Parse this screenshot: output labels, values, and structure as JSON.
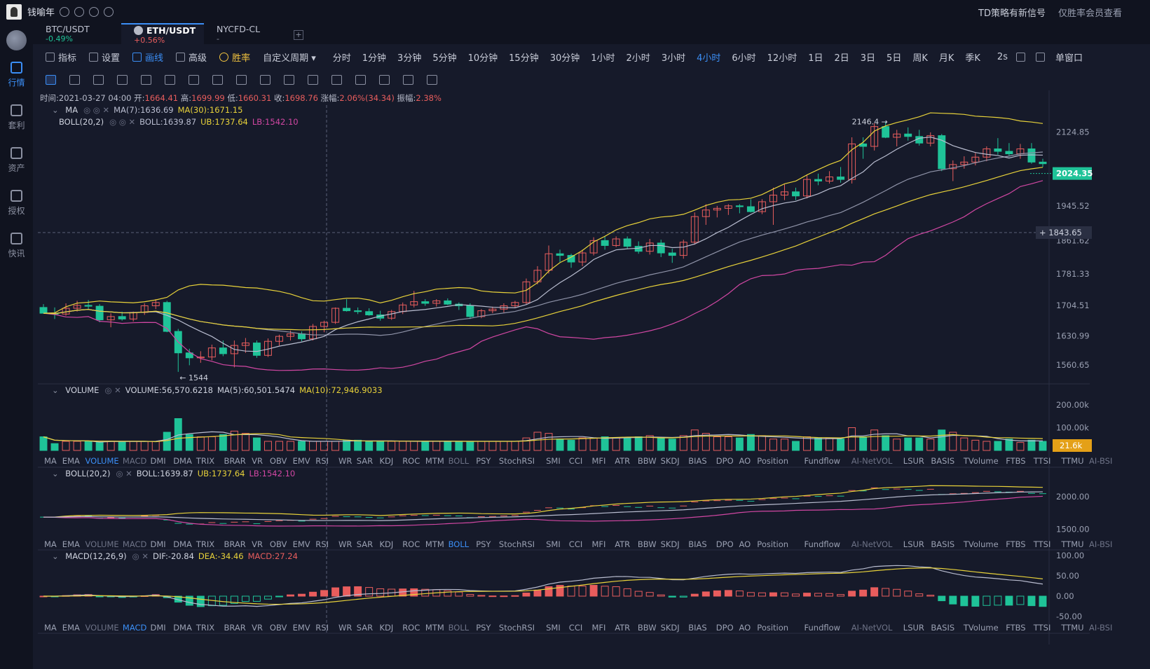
{
  "topbar": {
    "user_name": "钱喻年",
    "notice": "TD策略有新信号",
    "member_tip": "仅胜率会员查看"
  },
  "sidebar": [
    {
      "label": "行情",
      "icon": "market-icon",
      "active": true
    },
    {
      "label": "套利",
      "icon": "arbitrage-icon"
    },
    {
      "label": "资产",
      "icon": "wallet-icon"
    },
    {
      "label": "授权",
      "icon": "key-icon"
    },
    {
      "label": "快讯",
      "icon": "news-icon"
    }
  ],
  "tabs": [
    {
      "symbol": "BTC/USDT",
      "change": "-0.49%",
      "change_color": "#1fc398"
    },
    {
      "symbol": "ETH/USDT",
      "change": "+0.56%",
      "change_color": "#e85d5d",
      "active": true
    },
    {
      "symbol": "NYCFD-CL",
      "change": "-",
      "change_color": "#8b90a1"
    }
  ],
  "toolbar": {
    "buttons": [
      {
        "label": "指标",
        "icon": "indicator-icon"
      },
      {
        "label": "设置",
        "icon": "gear-icon"
      },
      {
        "label": "画线",
        "icon": "pen-icon",
        "cls": "draw"
      },
      {
        "label": "高级",
        "icon": "advanced-icon"
      },
      {
        "label": "胜率",
        "icon": "winrate-icon",
        "cls": "win"
      },
      {
        "label": "自定义周期 ▾",
        "icon": ""
      }
    ],
    "timeframes": [
      "分时",
      "1分钟",
      "3分钟",
      "5分钟",
      "10分钟",
      "15分钟",
      "30分钟",
      "1小时",
      "2小时",
      "3小时",
      "4小时",
      "6小时",
      "12小时",
      "1日",
      "2日",
      "3日",
      "5日",
      "周K",
      "月K",
      "季K"
    ],
    "active_tf": "4小时",
    "refresh": "2s",
    "window": "单窗口"
  },
  "draw_tools": [
    "cursor-tool-icon",
    "line-tool-icon",
    "channel-tool-icon",
    "rect-tool-icon",
    "fib-tool-icon",
    "wave-tool-icon",
    "measure-tool-icon",
    "text-tool-icon",
    "magnet-tool-icon",
    "hide-tool-icon",
    "ruler-tool-icon",
    "brush-tool-icon",
    "pattern-tool-icon",
    "lock-tool-icon",
    "copy-tool-icon",
    "template-tool-icon",
    "trash-tool-icon"
  ],
  "ohlc_bar": {
    "time": "时间:2021-03-27 04:00",
    "open_label": "开:",
    "open": "1664.41",
    "high_label": "高:",
    "high": "1699.99",
    "low_label": "低:",
    "low": "1660.31",
    "close_label": "收:",
    "close": "1698.76",
    "chg_label": "涨幅:",
    "chg": "2.06%(34.34)",
    "amp_label": "振幅:",
    "amp": "2.38%"
  },
  "main_legend": {
    "ma_name": "MA",
    "ma7": "MA(7):1636.69",
    "ma30": "MA(30):1671.15",
    "boll_name": "BOLL(20,2)",
    "boll": "BOLL:1639.87",
    "ub": "UB:1737.64",
    "lb": "LB:1542.10"
  },
  "vol_legend": {
    "name": "VOLUME",
    "vol": "VOLUME:56,570.6218",
    "ma5": "MA(5):60,501.5474",
    "ma10": "MA(10):72,946.9033"
  },
  "boll_legend": {
    "name": "BOLL(20,2)",
    "boll": "BOLL:1639.87",
    "ub": "UB:1737.64",
    "lb": "LB:1542.10"
  },
  "macd_legend": {
    "name": "MACD(12,26,9)",
    "dif": "DIF:-20.84",
    "dea": "DEA:-34.46",
    "macd": "MACD:27.24"
  },
  "indicator_tabs": [
    "MA",
    "EMA",
    "VOLUME",
    "MACD",
    "DMI",
    "DMA",
    "TRIX",
    "BRAR",
    "VR",
    "OBV",
    "EMV",
    "RSI",
    "WR",
    "SAR",
    "KDJ",
    "ROC",
    "MTM",
    "BOLL",
    "PSY",
    "StochRSI",
    "SMI",
    "CCI",
    "MFI",
    "ATR",
    "BBW",
    "SKDJ",
    "BIAS",
    "DPO",
    "AO",
    "Position",
    "Fundflow",
    "AI-NetVOL",
    "LSUR",
    "BASIS",
    "TVolume",
    "FTBS",
    "TTSI",
    "TTMU",
    "AI-BSI"
  ],
  "indicator_tabs_dim": [
    "MACD",
    "BOLL",
    "AI-NetVOL",
    "AI-BSI"
  ],
  "colors": {
    "up": "#e85d5d",
    "down": "#1fc398",
    "ma7": "#b9bdd0",
    "ma30": "#e8d23a",
    "ub": "#e8d23a",
    "lb": "#d147a3",
    "accent": "#3b8ef5"
  },
  "chart_data": {
    "type": "candlestick",
    "price_axis": [
      "2124.85",
      "2024.35",
      "1945.52",
      "1861.62",
      "1843.65",
      "1781.33",
      "1704.51",
      "1630.99",
      "1560.65"
    ],
    "price_axis_vals": [
      2124.85,
      null,
      1945.52,
      1861.62,
      null,
      1781.33,
      1704.51,
      1630.99,
      1560.65
    ],
    "last_price": "2024.35",
    "crosshair_price": "1843.65",
    "high_marker": "2146.4 →",
    "low_marker": "← 1544",
    "vol_axis": [
      "200.00k",
      "100.00k"
    ],
    "last_vol": "21.6k",
    "boll_axis": [
      "2000.00",
      "1500.00"
    ],
    "macd_axis": [
      "100.00",
      "50.00",
      "0.00",
      "-50.00"
    ],
    "ylim": [
      1520,
      2190
    ],
    "candles": [
      [
        1700,
        1708,
        1690,
        1686
      ],
      [
        1686,
        1700,
        1672,
        1684
      ],
      [
        1684,
        1710,
        1680,
        1698
      ],
      [
        1698,
        1716,
        1690,
        1705
      ],
      [
        1705,
        1718,
        1694,
        1703
      ],
      [
        1703,
        1708,
        1664,
        1670
      ],
      [
        1670,
        1686,
        1652,
        1678
      ],
      [
        1678,
        1690,
        1668,
        1672
      ],
      [
        1672,
        1690,
        1666,
        1688
      ],
      [
        1688,
        1710,
        1682,
        1704
      ],
      [
        1704,
        1720,
        1696,
        1712
      ],
      [
        1712,
        1716,
        1640,
        1642
      ],
      [
        1642,
        1648,
        1544,
        1590
      ],
      [
        1590,
        1600,
        1560,
        1578
      ],
      [
        1578,
        1594,
        1566,
        1580
      ],
      [
        1580,
        1610,
        1572,
        1602
      ],
      [
        1602,
        1620,
        1582,
        1588
      ],
      [
        1588,
        1620,
        1555,
        1608
      ],
      [
        1608,
        1626,
        1590,
        1614
      ],
      [
        1614,
        1620,
        1578,
        1584
      ],
      [
        1584,
        1625,
        1580,
        1618
      ],
      [
        1618,
        1634,
        1608,
        1630
      ],
      [
        1630,
        1644,
        1620,
        1636
      ],
      [
        1636,
        1642,
        1618,
        1624
      ],
      [
        1624,
        1660,
        1620,
        1654
      ],
      [
        1654,
        1668,
        1640,
        1664
      ],
      [
        1664,
        1700,
        1660,
        1698
      ],
      [
        1698,
        1720,
        1690,
        1692
      ],
      [
        1692,
        1700,
        1684,
        1690
      ],
      [
        1690,
        1698,
        1680,
        1682
      ],
      [
        1682,
        1692,
        1668,
        1674
      ],
      [
        1674,
        1694,
        1670,
        1690
      ],
      [
        1690,
        1712,
        1684,
        1706
      ],
      [
        1706,
        1740,
        1700,
        1714
      ],
      [
        1714,
        1720,
        1704,
        1710
      ],
      [
        1710,
        1720,
        1702,
        1716
      ],
      [
        1716,
        1722,
        1706,
        1708
      ],
      [
        1708,
        1712,
        1694,
        1704
      ],
      [
        1704,
        1710,
        1672,
        1678
      ],
      [
        1678,
        1696,
        1674,
        1692
      ],
      [
        1692,
        1702,
        1686,
        1696
      ],
      [
        1696,
        1710,
        1688,
        1704
      ],
      [
        1704,
        1716,
        1698,
        1712
      ],
      [
        1712,
        1770,
        1708,
        1762
      ],
      [
        1762,
        1800,
        1756,
        1790
      ],
      [
        1790,
        1850,
        1782,
        1830
      ],
      [
        1830,
        1840,
        1810,
        1826
      ],
      [
        1826,
        1830,
        1796,
        1810
      ],
      [
        1810,
        1840,
        1800,
        1832
      ],
      [
        1832,
        1870,
        1826,
        1862
      ],
      [
        1862,
        1872,
        1840,
        1850
      ],
      [
        1850,
        1872,
        1846,
        1866
      ],
      [
        1866,
        1872,
        1842,
        1848
      ],
      [
        1848,
        1860,
        1830,
        1836
      ],
      [
        1836,
        1866,
        1828,
        1856
      ],
      [
        1856,
        1864,
        1822,
        1832
      ],
      [
        1832,
        1842,
        1808,
        1826
      ],
      [
        1826,
        1864,
        1818,
        1858
      ],
      [
        1858,
        1930,
        1852,
        1920
      ],
      [
        1920,
        1950,
        1900,
        1936
      ],
      [
        1936,
        1946,
        1918,
        1940
      ],
      [
        1940,
        1950,
        1924,
        1946
      ],
      [
        1946,
        1950,
        1928,
        1944
      ],
      [
        1944,
        1962,
        1930,
        1932
      ],
      [
        1932,
        1962,
        1926,
        1956
      ],
      [
        1956,
        1990,
        1900,
        1972
      ],
      [
        1972,
        1998,
        1960,
        1980
      ],
      [
        1980,
        1990,
        1960,
        1970
      ],
      [
        1970,
        2020,
        1964,
        2010
      ],
      [
        2010,
        2024,
        1996,
        2006
      ],
      [
        2006,
        2030,
        2000,
        2016
      ],
      [
        2016,
        2040,
        2002,
        2010
      ],
      [
        2010,
        2112,
        2000,
        2096
      ],
      [
        2096,
        2112,
        2060,
        2090
      ],
      [
        2090,
        2146,
        2080,
        2138
      ],
      [
        2138,
        2150,
        2110,
        2112
      ],
      [
        2112,
        2130,
        2090,
        2120
      ],
      [
        2120,
        2136,
        2104,
        2114
      ],
      [
        2114,
        2130,
        2092,
        2098
      ],
      [
        2098,
        2124,
        2090,
        2116
      ],
      [
        2116,
        2120,
        2030,
        2036
      ],
      [
        2036,
        2056,
        2006,
        2046
      ],
      [
        2046,
        2066,
        2036,
        2052
      ],
      [
        2052,
        2074,
        2044,
        2064
      ],
      [
        2064,
        2090,
        2054,
        2084
      ],
      [
        2084,
        2110,
        2070,
        2078
      ],
      [
        2078,
        2098,
        2066,
        2072
      ],
      [
        2072,
        2096,
        2060,
        2084
      ],
      [
        2084,
        2098,
        2048,
        2052
      ],
      [
        2052,
        2060,
        2040,
        2048
      ]
    ],
    "volumes": [
      60,
      30,
      40,
      40,
      40,
      35,
      40,
      40,
      40,
      40,
      40,
      80,
      140,
      70,
      60,
      60,
      70,
      85,
      75,
      55,
      40,
      40,
      40,
      40,
      40,
      40,
      40,
      45,
      45,
      40,
      40,
      40,
      40,
      40,
      40,
      40,
      40,
      40,
      40,
      40,
      40,
      40,
      40,
      55,
      80,
      75,
      50,
      45,
      55,
      55,
      60,
      55,
      55,
      60,
      65,
      55,
      50,
      65,
      90,
      75,
      60,
      60,
      55,
      70,
      65,
      50,
      50,
      40,
      60,
      55,
      55,
      50,
      100,
      60,
      90,
      65,
      50,
      55,
      55,
      50,
      90,
      80,
      55,
      45,
      40,
      40,
      50,
      35,
      45,
      40
    ]
  }
}
